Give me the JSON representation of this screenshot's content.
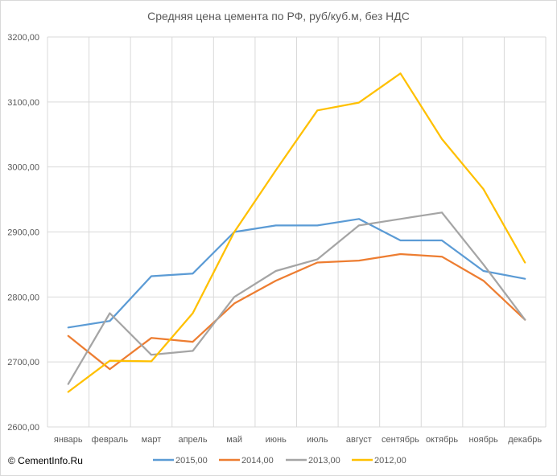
{
  "copyright": "© CementInfo.Ru",
  "chart_data": {
    "type": "line",
    "title": "Средняя цена цемента по РФ, руб/куб.м, без НДС",
    "xlabel": "",
    "ylabel": "",
    "categories": [
      "январь",
      "февраль",
      "март",
      "апрель",
      "май",
      "июнь",
      "июль",
      "август",
      "сентябрь",
      "октябрь",
      "ноябрь",
      "декабрь"
    ],
    "ylim": [
      2600,
      3200
    ],
    "yticks": [
      2600,
      2700,
      2800,
      2900,
      3000,
      3100,
      3200
    ],
    "ytick_labels": [
      "2600,00",
      "2700,00",
      "2800,00",
      "2900,00",
      "3000,00",
      "3100,00",
      "3200,00"
    ],
    "grid": true,
    "legend_position": "bottom",
    "series": [
      {
        "name": "2015,00",
        "color": "#5b9bd5",
        "values": [
          2753,
          2763,
          2832,
          2836,
          2900,
          2910,
          2910,
          2920,
          2887,
          2887,
          2840,
          2828
        ]
      },
      {
        "name": "2014,00",
        "color": "#ed7d31",
        "values": [
          2740,
          2689,
          2737,
          2731,
          2790,
          2825,
          2853,
          2856,
          2866,
          2862,
          2825,
          2765
        ]
      },
      {
        "name": "2013,00",
        "color": "#a5a5a5",
        "values": [
          2666,
          2775,
          2711,
          2717,
          2800,
          2840,
          2858,
          2910,
          2920,
          2930,
          2850,
          2765
        ]
      },
      {
        "name": "2012,00",
        "color": "#ffc000",
        "values": [
          2654,
          2702,
          2701,
          2775,
          2900,
          2995,
          3087,
          3099,
          3144,
          3043,
          2966,
          2853
        ]
      }
    ]
  }
}
